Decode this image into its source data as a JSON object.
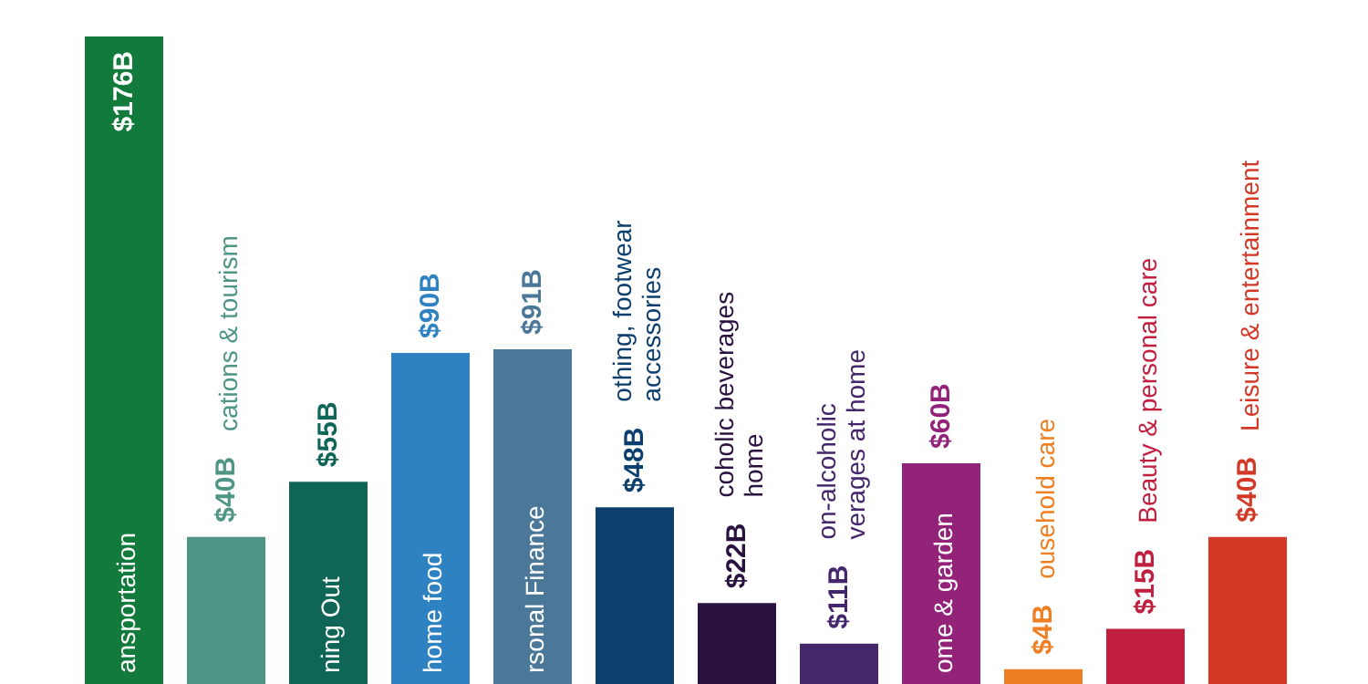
{
  "chart_data": {
    "type": "bar",
    "categories": [
      "ansportation",
      "cations & tourism",
      "ning Out",
      "home food",
      "rsonal Finance",
      "othing, footwear\naccessories",
      "coholic beverages\nhome",
      "on-alcoholic\nverages at home",
      "ome & garden",
      "ousehold care",
      "Beauty & personal care",
      "Leisure & entertainment"
    ],
    "values": [
      176,
      40,
      55,
      90,
      91,
      48,
      22,
      11,
      60,
      4,
      15,
      40
    ],
    "value_labels": [
      "$176B",
      "$40B",
      "$55B",
      "$90B",
      "$91B",
      "$48B",
      "$22B",
      "$11B",
      "$60B",
      "$4B",
      "$15B",
      "$40B"
    ],
    "colors": [
      "#127b3c",
      "#4f9585",
      "#0f6556",
      "#2f82c2",
      "#4b7799",
      "#0d3f6e",
      "#2a1240",
      "#43266b",
      "#932379",
      "#ee7f22",
      "#c11f3f",
      "#d23a27"
    ],
    "grid": false
  }
}
